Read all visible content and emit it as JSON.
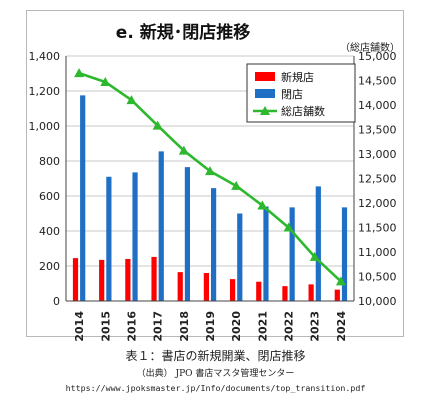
{
  "chart_data": {
    "type": "bar",
    "title": "e. 新規･閉店推移",
    "right_axis_label": "（総店舗数）",
    "categories": [
      "2014",
      "2015",
      "2016",
      "2017",
      "2018",
      "2019",
      "2020",
      "2021",
      "2022",
      "2023",
      "2024"
    ],
    "series": [
      {
        "name": "新規店",
        "type": "bar",
        "axis": "left",
        "color": "#ff0000",
        "values": [
          245,
          235,
          240,
          252,
          165,
          160,
          125,
          110,
          85,
          95,
          65
        ]
      },
      {
        "name": "閉店",
        "type": "bar",
        "axis": "left",
        "color": "#1f6fc5",
        "values": [
          1175,
          710,
          735,
          855,
          765,
          645,
          500,
          540,
          535,
          655,
          535
        ]
      },
      {
        "name": "総店舗数",
        "type": "line",
        "axis": "right",
        "color": "#2db82d",
        "values": [
          14650,
          14470,
          14100,
          13580,
          13070,
          12650,
          12350,
          11950,
          11500,
          10900,
          10400
        ]
      }
    ],
    "yleft": {
      "min": 0,
      "max": 1400,
      "ticks": [
        "0",
        "200",
        "400",
        "600",
        "800",
        "1,000",
        "1,200",
        "1,400"
      ]
    },
    "yright": {
      "min": 10000,
      "max": 15000,
      "ticks": [
        "10,000",
        "10,500",
        "11,000",
        "11,500",
        "12,000",
        "12,500",
        "13,000",
        "13,500",
        "14,000",
        "14,500",
        "15,000"
      ]
    },
    "grid": true,
    "legend_position": "top-right"
  },
  "caption": {
    "title": "表１：書店の新規開業、閉店推移",
    "source": "（出典） JPO 書店マスタ管理センター",
    "url": "https://www.jpoksmaster.jp/Info/documents/top_transition.pdf"
  }
}
